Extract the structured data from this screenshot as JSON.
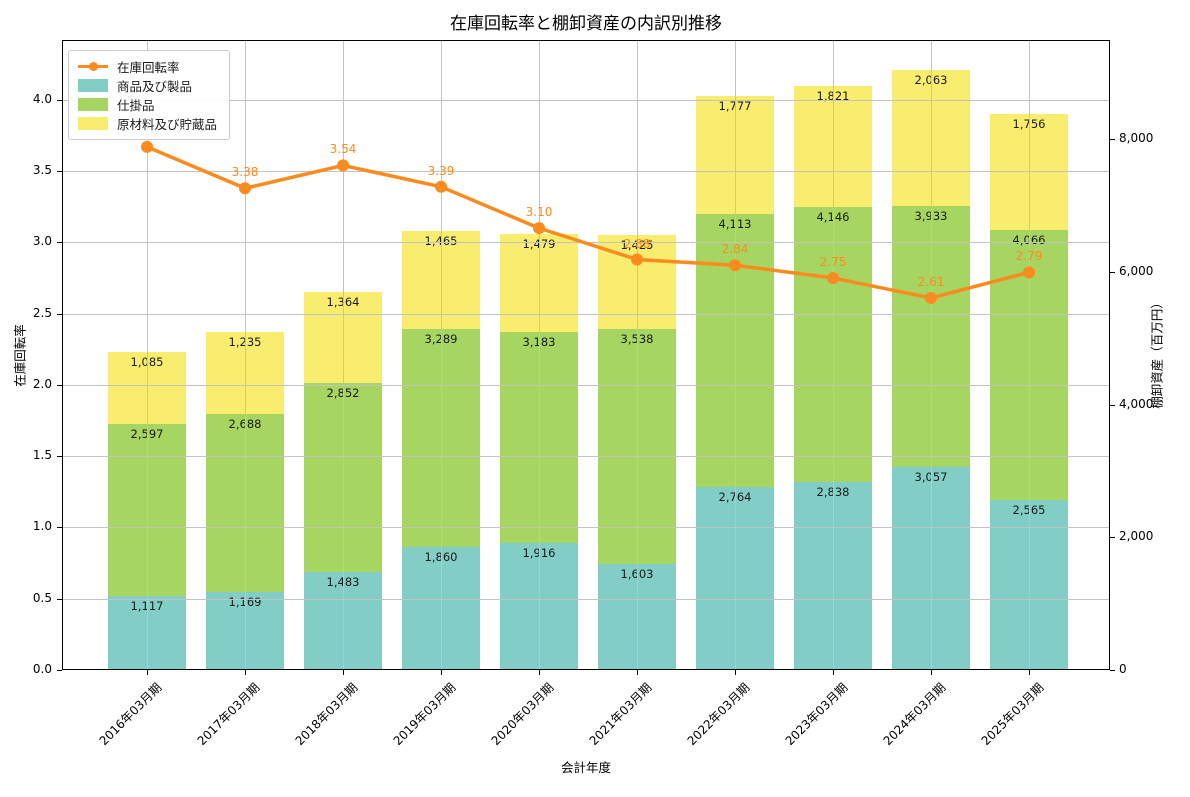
{
  "title": "在庫回転率と棚卸資産の内訳別推移",
  "colors": {
    "line_orange": "#fb8b1e",
    "bar_teal": "#82cdc6",
    "bar_green": "#a6d562",
    "bar_yellow": "#f9ed6f",
    "grid": "#c3c3c3",
    "label_text": "#1a1a1a"
  },
  "legend": {
    "items": [
      {
        "label": "在庫回転率",
        "type": "line"
      },
      {
        "label": "商品及び製品",
        "type": "patch"
      },
      {
        "label": "仕掛品",
        "type": "patch"
      },
      {
        "label": "原材料及び貯蔵品",
        "type": "patch"
      }
    ]
  },
  "chart_data": {
    "type": "bar",
    "subtype": "stacked-bars-with-line",
    "title": "在庫回転率と棚卸資産の内訳別推移",
    "xlabel": "会計年度",
    "categories": [
      "2016年03月期",
      "2017年03月期",
      "2018年03月期",
      "2019年03月期",
      "2020年03月期",
      "2021年03月期",
      "2022年03月期",
      "2023年03月期",
      "2024年03月期",
      "2025年03月期"
    ],
    "series": [
      {
        "name": "商品及び製品",
        "type": "bar",
        "axis": "right",
        "values": [
          1117,
          1169,
          1483,
          1860,
          1916,
          1603,
          2764,
          2838,
          3057,
          2565
        ],
        "labels": [
          "1,117",
          "1,169",
          "1,483",
          "1,860",
          "1,916",
          "1,603",
          "2,764",
          "2,838",
          "3,057",
          "2,565"
        ]
      },
      {
        "name": "仕掛品",
        "type": "bar",
        "axis": "right",
        "values": [
          2597,
          2688,
          2852,
          3289,
          3183,
          3538,
          4113,
          4146,
          3933,
          4066
        ],
        "labels": [
          "2,597",
          "2,688",
          "2,852",
          "3,289",
          "3,183",
          "3,538",
          "4,113",
          "4,146",
          "3,933",
          "4,066"
        ]
      },
      {
        "name": "原材料及び貯蔵品",
        "type": "bar",
        "axis": "right",
        "values": [
          1085,
          1235,
          1364,
          1465,
          1479,
          1425,
          1777,
          1821,
          2063,
          1756
        ],
        "labels": [
          "1,085",
          "1,235",
          "1,364",
          "1,465",
          "1,479",
          "1,425",
          "1,777",
          "1,821",
          "2,063",
          "1,756"
        ]
      },
      {
        "name": "在庫回転率",
        "type": "line",
        "axis": "left",
        "values": [
          3.67,
          3.38,
          3.54,
          3.39,
          3.1,
          2.88,
          2.84,
          2.75,
          2.61,
          2.79
        ],
        "labels": [
          "3.67",
          "3.38",
          "3.54",
          "3.39",
          "3.10",
          "2.88",
          "2.84",
          "2.75",
          "2.61",
          "2.79"
        ]
      }
    ],
    "left_axis": {
      "label": "在庫回転率",
      "ticks": [
        "0.0",
        "0.5",
        "1.0",
        "1.5",
        "2.0",
        "2.5",
        "3.0",
        "3.5",
        "4.0"
      ],
      "tick_values": [
        0,
        0.5,
        1,
        1.5,
        2,
        2.5,
        3,
        3.5,
        4
      ],
      "ylim": [
        0,
        4.42
      ]
    },
    "right_axis": {
      "label": "棚卸資産（百万円）",
      "ticks": [
        "0",
        "2,000",
        "4,000",
        "6,000",
        "8,000"
      ],
      "tick_values": [
        0,
        2000,
        4000,
        6000,
        8000
      ],
      "ylim": [
        0,
        9500
      ]
    },
    "grid": true,
    "legend_position": "upper left"
  }
}
